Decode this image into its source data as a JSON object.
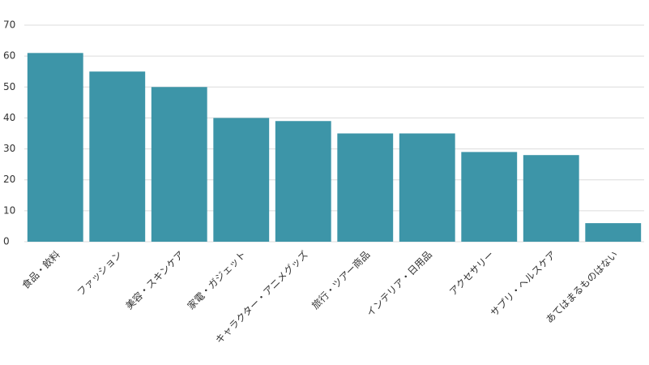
{
  "chart_data": {
    "type": "bar",
    "categories": [
      "食品・飲料",
      "ファッション",
      "美容・スキンケア",
      "家電・ガジェット",
      "キャラクター・アニメグッズ",
      "旅行・ツアー商品",
      "インテリア・日用品",
      "アクセサリー",
      "サプリ・ヘルスケア",
      "あてはまるものはない"
    ],
    "values": [
      61,
      55,
      50,
      40,
      39,
      35,
      35,
      29,
      28,
      6
    ],
    "color": "#3d95a8",
    "ylim": [
      0,
      70
    ],
    "yticks": [
      0,
      10,
      20,
      30,
      40,
      50,
      60,
      70
    ],
    "grid": true
  }
}
